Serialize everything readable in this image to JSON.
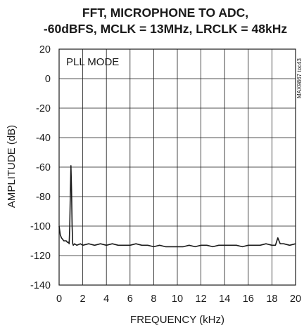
{
  "chart_data": {
    "type": "line",
    "title_lines": [
      "FFT, MICROPHONE TO ADC,",
      "-60dBFS, MCLK = 13MHz, LRCLK = 48kHz"
    ],
    "xlabel": "FREQUENCY (kHz)",
    "ylabel": "AMPLITUDE (dB)",
    "xlim": [
      0,
      20
    ],
    "ylim": [
      -140,
      20
    ],
    "x_ticks": [
      0,
      2,
      4,
      6,
      8,
      10,
      12,
      14,
      16,
      18,
      20
    ],
    "y_ticks": [
      20,
      0,
      -20,
      -40,
      -60,
      -80,
      -100,
      -120,
      -140
    ],
    "grid": true,
    "annotation": "PLL MODE",
    "side_note": "MAX9867 toc43",
    "line_color": "#1a1a1a",
    "series": [
      {
        "x": [
          0.0,
          0.05,
          0.1,
          0.2,
          0.3,
          0.4,
          0.5,
          0.6,
          0.7,
          0.8,
          0.85,
          0.9,
          0.95,
          1.0,
          1.05,
          1.1,
          1.15,
          1.2,
          1.3,
          1.5,
          1.8,
          2.0,
          2.5,
          3.0,
          3.5,
          4.0,
          4.5,
          5.0,
          5.5,
          6.0,
          6.5,
          7.0,
          7.5,
          8.0,
          8.5,
          9.0,
          9.5,
          10.0,
          10.5,
          11.0,
          11.5,
          12.0,
          12.5,
          13.0,
          13.5,
          14.0,
          14.5,
          15.0,
          15.5,
          16.0,
          16.5,
          17.0,
          17.5,
          18.0,
          18.3,
          18.5,
          18.7,
          19.0,
          19.5,
          20.0
        ],
        "y": [
          -100,
          -103,
          -106,
          -108,
          -109,
          -110,
          -110,
          -110,
          -111,
          -111,
          -112,
          -100,
          -78,
          -59,
          -75,
          -100,
          -112,
          -113,
          -112,
          -113,
          -112,
          -113,
          -112,
          -113,
          -112,
          -113,
          -112,
          -113,
          -113,
          -113,
          -112,
          -113,
          -113,
          -114,
          -113,
          -114,
          -114,
          -114,
          -114,
          -113,
          -114,
          -113,
          -113,
          -114,
          -113,
          -113,
          -113,
          -113,
          -114,
          -113,
          -113,
          -113,
          -112,
          -113,
          -113,
          -108,
          -112,
          -112,
          -113,
          -112
        ]
      }
    ]
  }
}
